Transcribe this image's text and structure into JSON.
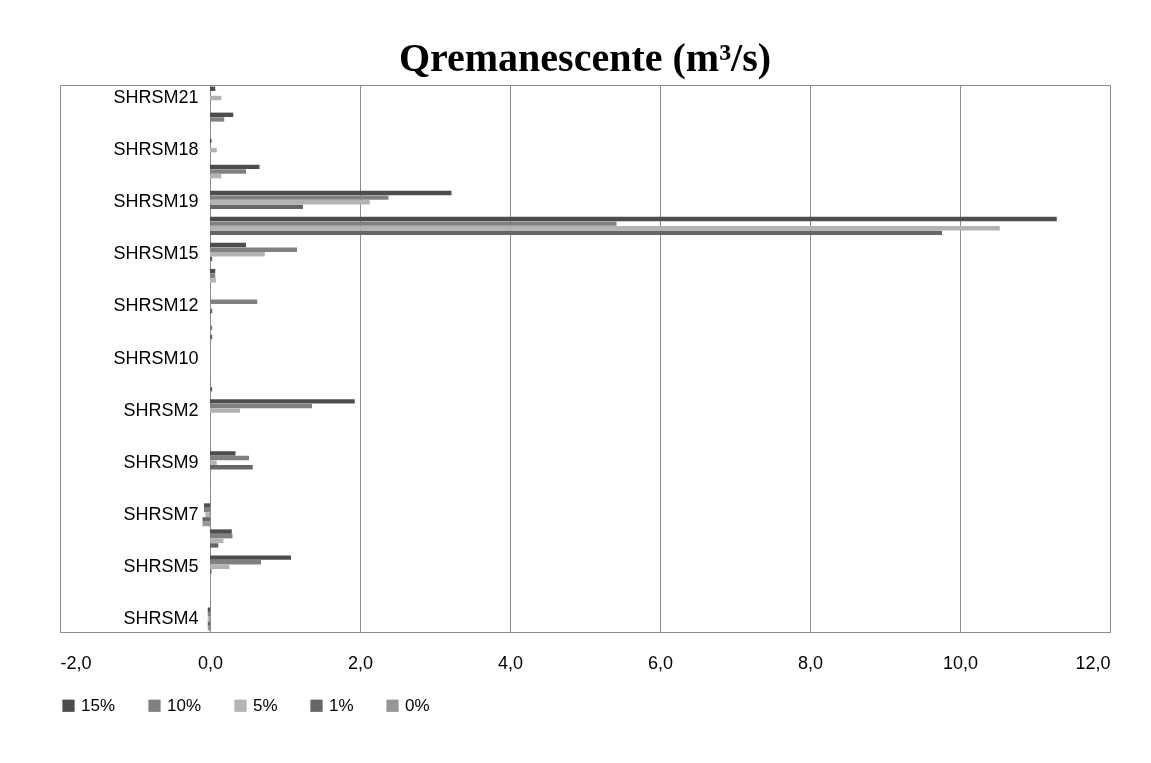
{
  "chart_data": {
    "type": "bar",
    "orientation": "horizontal",
    "title": "Qremanescente (m³/s)",
    "categories": [
      "SHRSM21",
      null,
      "SHRSM18",
      null,
      "SHRSM19",
      null,
      "SHRSM15",
      null,
      "SHRSM12",
      null,
      "SHRSM10",
      null,
      "SHRSM2",
      null,
      "SHRSM9",
      null,
      "SHRSM7",
      null,
      "SHRSM5",
      null,
      "SHRSM4"
    ],
    "series": [
      {
        "name": "15%",
        "color": "#4d4d4d",
        "values": [
          0.07,
          0.31,
          0.02,
          0.66,
          3.22,
          11.29,
          0.48,
          0.07,
          null,
          null,
          null,
          null,
          1.93,
          null,
          0.34,
          null,
          -0.08,
          0.29,
          1.08,
          null,
          -0.03
        ]
      },
      {
        "name": "10%",
        "color": "#808080",
        "values": [
          null,
          0.19,
          null,
          0.48,
          2.38,
          5.42,
          1.16,
          0.07,
          0.63,
          0.03,
          null,
          0.01,
          1.36,
          null,
          0.52,
          0.01,
          -0.08,
          0.3,
          0.68,
          null,
          -0.03
        ]
      },
      {
        "name": "5%",
        "color": "#b3b3b3",
        "values": [
          0.15,
          null,
          0.09,
          0.15,
          2.13,
          10.53,
          0.73,
          0.08,
          null,
          null,
          null,
          null,
          0.4,
          null,
          0.09,
          null,
          -0.06,
          0.18,
          0.26,
          null,
          -0.03
        ]
      },
      {
        "name": "1%",
        "color": "#666666",
        "values": [
          null,
          null,
          null,
          null,
          1.24,
          9.76,
          0.03,
          null,
          0.03,
          0.03,
          null,
          0.03,
          null,
          null,
          0.57,
          null,
          -0.1,
          0.11,
          0.02,
          null,
          -0.03
        ]
      },
      {
        "name": "0%",
        "color": "#969696",
        "values": [
          null,
          null,
          null,
          null,
          null,
          null,
          null,
          null,
          null,
          null,
          null,
          null,
          null,
          null,
          null,
          null,
          -0.1,
          null,
          null,
          null,
          -0.03
        ]
      }
    ],
    "xlim": [
      -2,
      12
    ],
    "xticks": [
      {
        "value": -2,
        "label": "-2,0"
      },
      {
        "value": 0,
        "label": "0,0"
      },
      {
        "value": 2,
        "label": "2,0"
      },
      {
        "value": 4,
        "label": "4,0"
      },
      {
        "value": 6,
        "label": "6,0"
      },
      {
        "value": 8,
        "label": "8,0"
      },
      {
        "value": 10,
        "label": "10,0"
      },
      {
        "value": 12,
        "label": "12,0"
      }
    ],
    "grid": "x",
    "legend": "bottom"
  }
}
